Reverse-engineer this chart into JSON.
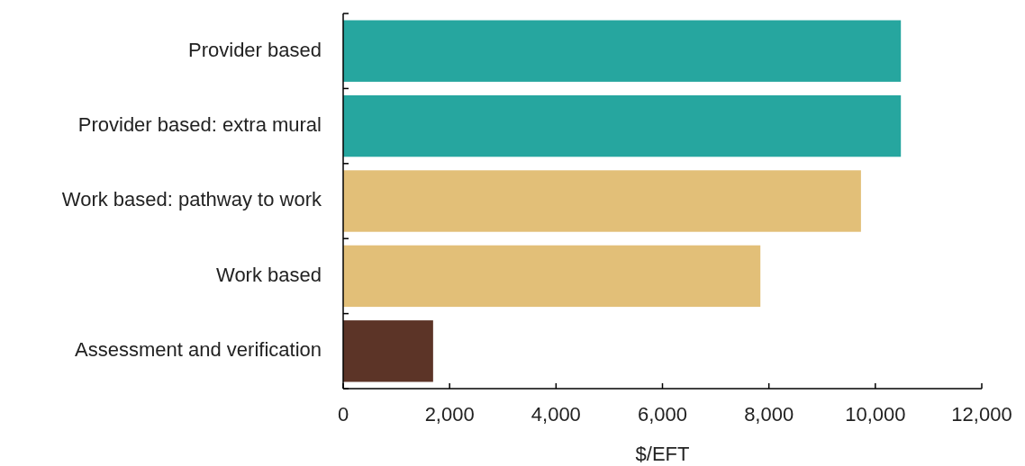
{
  "chart_data": {
    "type": "bar",
    "orientation": "horizontal",
    "xlabel": "$/EFT",
    "categories": [
      "Provider based",
      "Provider based: extra mural",
      "Work based: pathway to work",
      "Work based",
      "Assessment and verification"
    ],
    "values": [
      10480,
      10480,
      9730,
      7840,
      1690
    ],
    "colors": [
      "#26a69f",
      "#26a69f",
      "#e2bf78",
      "#e2bf78",
      "#5c3427"
    ],
    "xlim": [
      0,
      12000
    ],
    "xticks": [
      {
        "value": 0,
        "label": "0"
      },
      {
        "value": 2000,
        "label": "2,000"
      },
      {
        "value": 4000,
        "label": "4,000"
      },
      {
        "value": 6000,
        "label": "6,000"
      },
      {
        "value": 8000,
        "label": "8,000"
      },
      {
        "value": 10000,
        "label": "10,000"
      },
      {
        "value": 12000,
        "label": "12,000"
      }
    ],
    "grid": false
  }
}
